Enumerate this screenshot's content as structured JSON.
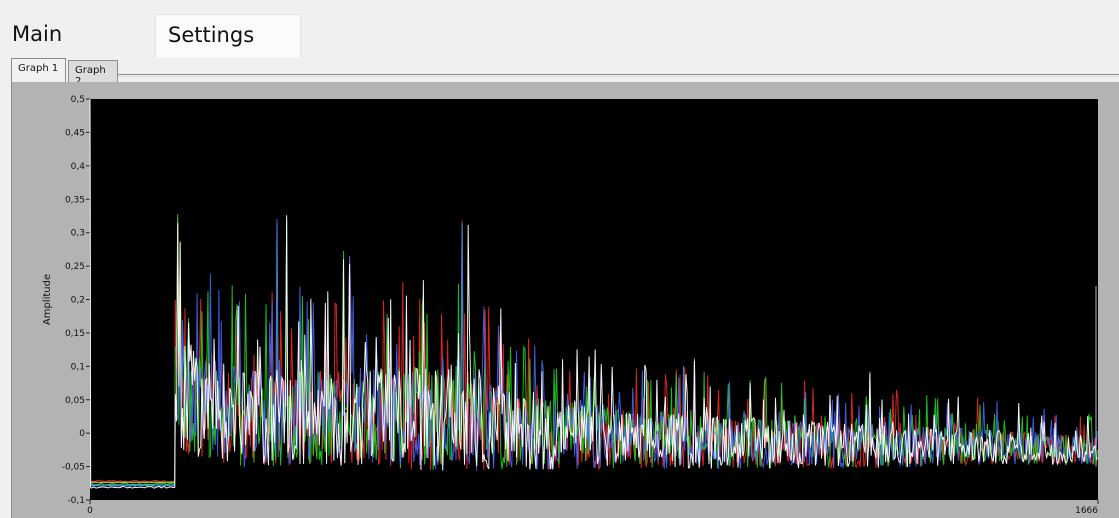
{
  "tabs": [
    {
      "label": "Main"
    },
    {
      "label": "Settings"
    }
  ],
  "subtabs": [
    {
      "label": "Graph 1",
      "selected": true
    },
    {
      "label": "Graph 2",
      "selected": false
    }
  ],
  "colors": {
    "plot_background": "#000000",
    "panel_background": "#b3b3b3",
    "series": [
      "#ff2a2a",
      "#22dd22",
      "#4a6bff",
      "#ffffff"
    ]
  },
  "chart_data": {
    "type": "line",
    "title": "",
    "xlabel": "",
    "ylabel": "Amplitude",
    "xlim": [
      0,
      1666
    ],
    "ylim": [
      -0.1,
      0.5
    ],
    "x_ticks": [
      "0",
      "1666"
    ],
    "y_ticks": [
      "0,5",
      "0,45",
      "0,4",
      "0,35",
      "0,3",
      "0,25",
      "0,2",
      "0,15",
      "0,1",
      "0,05",
      "0",
      "-0,05",
      "-0,1"
    ],
    "y_tick_values": [
      0.5,
      0.45,
      0.4,
      0.35,
      0.3,
      0.25,
      0.2,
      0.15,
      0.1,
      0.05,
      0,
      -0.05,
      -0.1
    ],
    "grid": false,
    "legend": "none",
    "series_colors": [
      "red",
      "green",
      "blue",
      "white"
    ],
    "baseline_segment": {
      "x": [
        0,
        140
      ],
      "y": -0.075
    },
    "onset_x": 140,
    "peaks": [
      {
        "x": 145,
        "y": 0.33
      },
      {
        "x": 150,
        "y": 0.29
      },
      {
        "x": 310,
        "y": 0.33
      },
      {
        "x": 325,
        "y": 0.33
      },
      {
        "x": 420,
        "y": 0.28
      },
      {
        "x": 430,
        "y": 0.27
      },
      {
        "x": 615,
        "y": 0.33
      },
      {
        "x": 625,
        "y": 0.32
      },
      {
        "x": 680,
        "y": 0.19
      },
      {
        "x": 1000,
        "y": 0.12
      },
      {
        "x": 1290,
        "y": 0.1
      }
    ],
    "envelope": {
      "x": [
        140,
        250,
        400,
        600,
        700,
        900,
        1100,
        1300,
        1500,
        1666
      ],
      "max": [
        0.28,
        0.22,
        0.22,
        0.24,
        0.16,
        0.11,
        0.09,
        0.07,
        0.05,
        0.03
      ],
      "min": [
        -0.02,
        -0.045,
        -0.045,
        -0.05,
        -0.05,
        -0.05,
        -0.05,
        -0.05,
        -0.045,
        -0.045
      ]
    }
  }
}
